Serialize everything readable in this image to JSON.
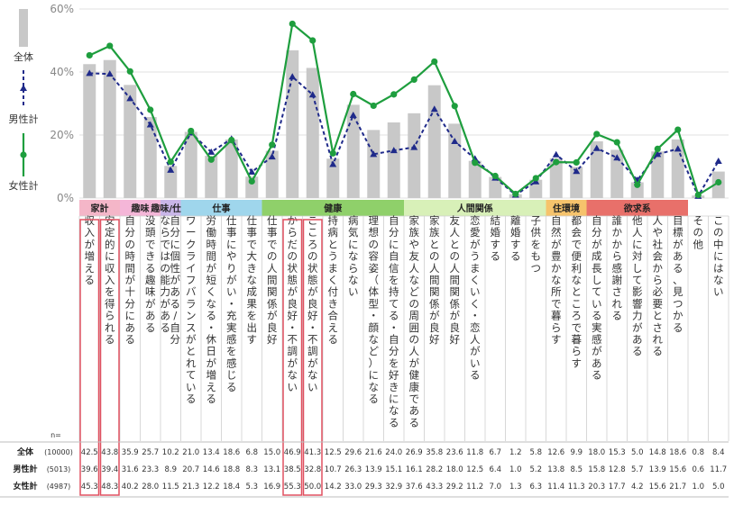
{
  "chart_data": {
    "type": "bar",
    "ylim": [
      0,
      60
    ],
    "yticks": [
      "0%",
      "20%",
      "40%",
      "60%"
    ],
    "n_label": "n=",
    "groups": [
      {
        "label": "家計",
        "span": 2,
        "color": "#f4b6c8"
      },
      {
        "label": "趣味",
        "span": 2,
        "color": "#f4b6d8"
      },
      {
        "label": "趣味/仕事",
        "span": 1,
        "color": "#c9b6e8"
      },
      {
        "label": "仕事",
        "span": 4,
        "color": "#9fd6ec"
      },
      {
        "label": "健康",
        "span": 7,
        "color": "#8fd06a"
      },
      {
        "label": "人間関係",
        "span": 7,
        "color": "#d8f0b8"
      },
      {
        "label": "住環境",
        "span": 2,
        "color": "#f6c36c"
      },
      {
        "label": "欲求系",
        "span": 5,
        "color": "#e8706a"
      }
    ],
    "categories": [
      "収入が増える",
      "安定的に収入を得られる",
      "自分の時間が十分にある",
      "没頭できる趣味がある",
      "自分に個性がある/自分ならではの能力がある",
      "ワークライフバランスがとれている",
      "労働時間が短くなる・休日が増える",
      "仕事にやりがい・充実感を感じる",
      "仕事で大きな成果を出す",
      "仕事での人間関係が良好",
      "からだの状態が良好・不調がない",
      "こころの状態が良好・不調がない",
      "持病とうまく付き合える",
      "病気にならない",
      "理想の容姿（体型・顔など）になる",
      "自分に自信を持てる・自分を好きになる",
      "家族や友人などの周囲の人が健康である",
      "家族との人間関係が良好",
      "友人との人間関係が良好",
      "恋愛がうまくいく・恋人がいる",
      "結婚する",
      "離婚する",
      "子供をもつ",
      "自然が豊かな所で暮らす",
      "都会で便利なところで暮らす",
      "自分が成長している実感がある",
      "誰かから感謝される",
      "他人に対して影響力がある",
      "人や社会から必要とされる",
      "目標がある、見つかる",
      "その他",
      "この中にはない"
    ],
    "highlighted": [
      0,
      1,
      10,
      11
    ],
    "series": [
      {
        "name": "全体",
        "kind": "bar",
        "color": "#c8c8c8",
        "n": "(10000)",
        "values": [
          42.5,
          43.8,
          35.9,
          25.7,
          10.2,
          21.0,
          13.4,
          18.6,
          6.8,
          15.0,
          46.9,
          41.3,
          12.5,
          29.6,
          21.6,
          24.0,
          26.9,
          35.8,
          23.6,
          11.8,
          6.7,
          1.2,
          5.8,
          12.6,
          9.9,
          18.0,
          15.3,
          5.0,
          14.8,
          18.6,
          0.8,
          8.4
        ]
      },
      {
        "name": "男性計",
        "kind": "line",
        "color": "#1f2a8a",
        "n": "(5013)",
        "values": [
          39.6,
          39.4,
          31.6,
          23.3,
          8.9,
          20.7,
          14.6,
          18.8,
          8.3,
          13.1,
          38.5,
          32.8,
          10.7,
          26.3,
          13.9,
          15.1,
          16.1,
          28.2,
          18.0,
          12.5,
          6.4,
          1.0,
          5.2,
          13.8,
          8.5,
          15.8,
          12.8,
          5.7,
          13.9,
          15.6,
          0.6,
          11.7
        ]
      },
      {
        "name": "女性計",
        "kind": "line",
        "color": "#1e9e3e",
        "n": "(4987)",
        "values": [
          45.3,
          48.3,
          40.2,
          28.0,
          11.5,
          21.3,
          12.2,
          18.4,
          5.3,
          16.9,
          55.3,
          50.0,
          14.2,
          33.0,
          29.3,
          32.9,
          37.6,
          43.3,
          29.2,
          11.2,
          7.0,
          1.3,
          6.3,
          11.4,
          11.3,
          20.3,
          17.7,
          4.2,
          15.6,
          21.7,
          1.0,
          5.0
        ]
      }
    ]
  }
}
